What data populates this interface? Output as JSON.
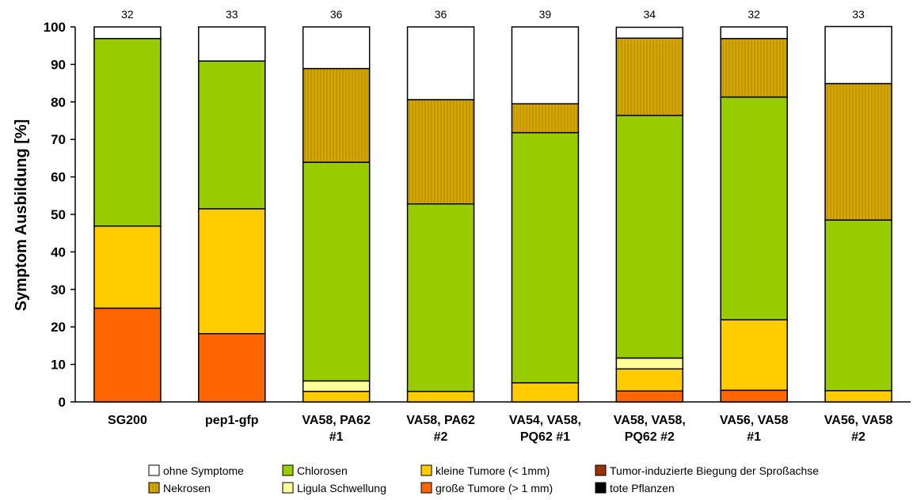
{
  "chart_data": {
    "type": "bar",
    "stacked": true,
    "title": "",
    "xlabel": "",
    "ylabel": "Symptom Ausbildung [%]",
    "ylim": [
      0,
      100
    ],
    "yticks": [
      0,
      10,
      20,
      30,
      40,
      50,
      60,
      70,
      80,
      90,
      100
    ],
    "categories": [
      [
        "SG200"
      ],
      [
        "pep1-gfp"
      ],
      [
        "VA58, PA62",
        "#1"
      ],
      [
        "VA58, PA62",
        "#2"
      ],
      [
        "VA54, VA58,",
        "PQ62 #1"
      ],
      [
        "VA58, VA58,",
        "PQ62 #2"
      ],
      [
        "VA56, VA58",
        "#1"
      ],
      [
        "VA56, VA58",
        "#2"
      ]
    ],
    "n_values": [
      "32",
      "33",
      "36",
      "36",
      "39",
      "34",
      "32",
      "33"
    ],
    "legend_position": "bottom",
    "series": [
      {
        "name": "tote Pflanzen",
        "color": "#000000",
        "values": [
          0,
          0,
          0,
          0,
          0,
          0,
          0,
          0
        ]
      },
      {
        "name": "große Tumore (> 1 mm)",
        "color": "#ff6600",
        "values": [
          25,
          18.2,
          0,
          0,
          0,
          2.9,
          3.1,
          0
        ]
      },
      {
        "name": "Tumor-induzierte Biegung der Sproßachse",
        "color": "#993300",
        "values": [
          0,
          0,
          0,
          0,
          0,
          0,
          0,
          0
        ]
      },
      {
        "name": "kleine Tumore (< 1mm)",
        "color": "#ffcc00",
        "values": [
          21.9,
          33.3,
          2.8,
          2.8,
          5.1,
          5.9,
          18.8,
          3.0
        ]
      },
      {
        "name": "Ligula Schwellung",
        "color": "#ffff99",
        "values": [
          0,
          0,
          2.8,
          0,
          0,
          2.9,
          0,
          0
        ]
      },
      {
        "name": "Chlorosen",
        "color": "#99cc00",
        "values": [
          50.0,
          39.4,
          58.3,
          50.0,
          66.7,
          64.7,
          59.4,
          45.5
        ]
      },
      {
        "name": "Nekrosen",
        "color": "#cca300",
        "values": [
          0,
          0,
          25.0,
          27.8,
          7.7,
          20.6,
          15.6,
          36.4
        ]
      },
      {
        "name": "ohne Symptome",
        "color": "#ffffff",
        "values": [
          3.1,
          9.1,
          11.1,
          19.4,
          20.5,
          2.9,
          3.1,
          15.2
        ]
      }
    ],
    "legend_order": [
      "ohne Symptome",
      "Chlorosen",
      "kleine Tumore (< 1mm)",
      "Tumor-induzierte Biegung der Sproßachse",
      "Nekrosen",
      "Ligula Schwellung",
      "große Tumore (> 1 mm)",
      "tote Pflanzen"
    ],
    "grid": false
  }
}
